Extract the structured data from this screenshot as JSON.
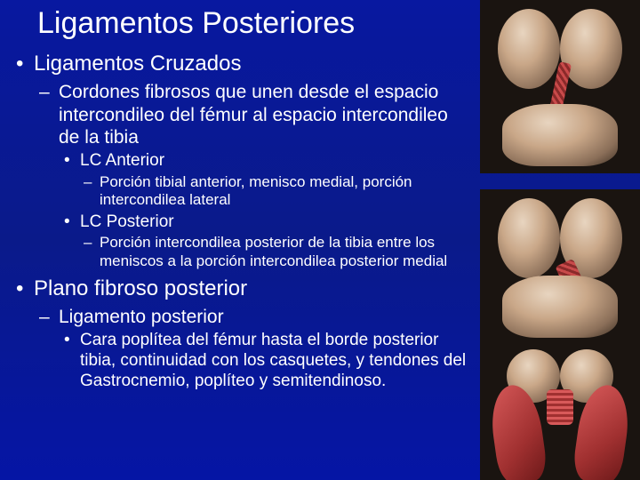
{
  "colors": {
    "background": "#0a1a8a",
    "text": "#ffffff"
  },
  "title": "Ligamentos Posteriores",
  "bullets": [
    {
      "text": "Ligamentos Cruzados",
      "children": [
        {
          "text": "Cordones fibrosos que unen desde el espacio intercondileo del fémur al espacio intercondileo de la tibia",
          "children": [
            {
              "text": "LC Anterior",
              "children": [
                {
                  "text": "Porción  tibial anterior, menisco medial, porción intercondilea lateral"
                }
              ]
            },
            {
              "text": "LC Posterior",
              "children": [
                {
                  "text": "Porción intercondilea posterior de la tibia entre los meniscos a la porción intercondilea posterior medial"
                }
              ]
            }
          ]
        }
      ]
    },
    {
      "text": "Plano fibroso posterior",
      "children": [
        {
          "text": "Ligamento posterior",
          "children": [
            {
              "text": "Cara poplítea del fémur hasta el borde posterior tibia, continuidad con los casquetes, y tendones del Gastrocnemio, poplíteo y semitendinoso."
            }
          ]
        }
      ]
    }
  ],
  "images": [
    {
      "name": "knee-posterior-acl",
      "desc": "Posterior knee – anterior cruciate ligament highlighted"
    },
    {
      "name": "knee-posterior-pcl",
      "desc": "Posterior knee – posterior cruciate ligament highlighted"
    },
    {
      "name": "knee-posterior-capsule",
      "desc": "Posterior knee – posterior ligament and gastrocnemius"
    }
  ]
}
